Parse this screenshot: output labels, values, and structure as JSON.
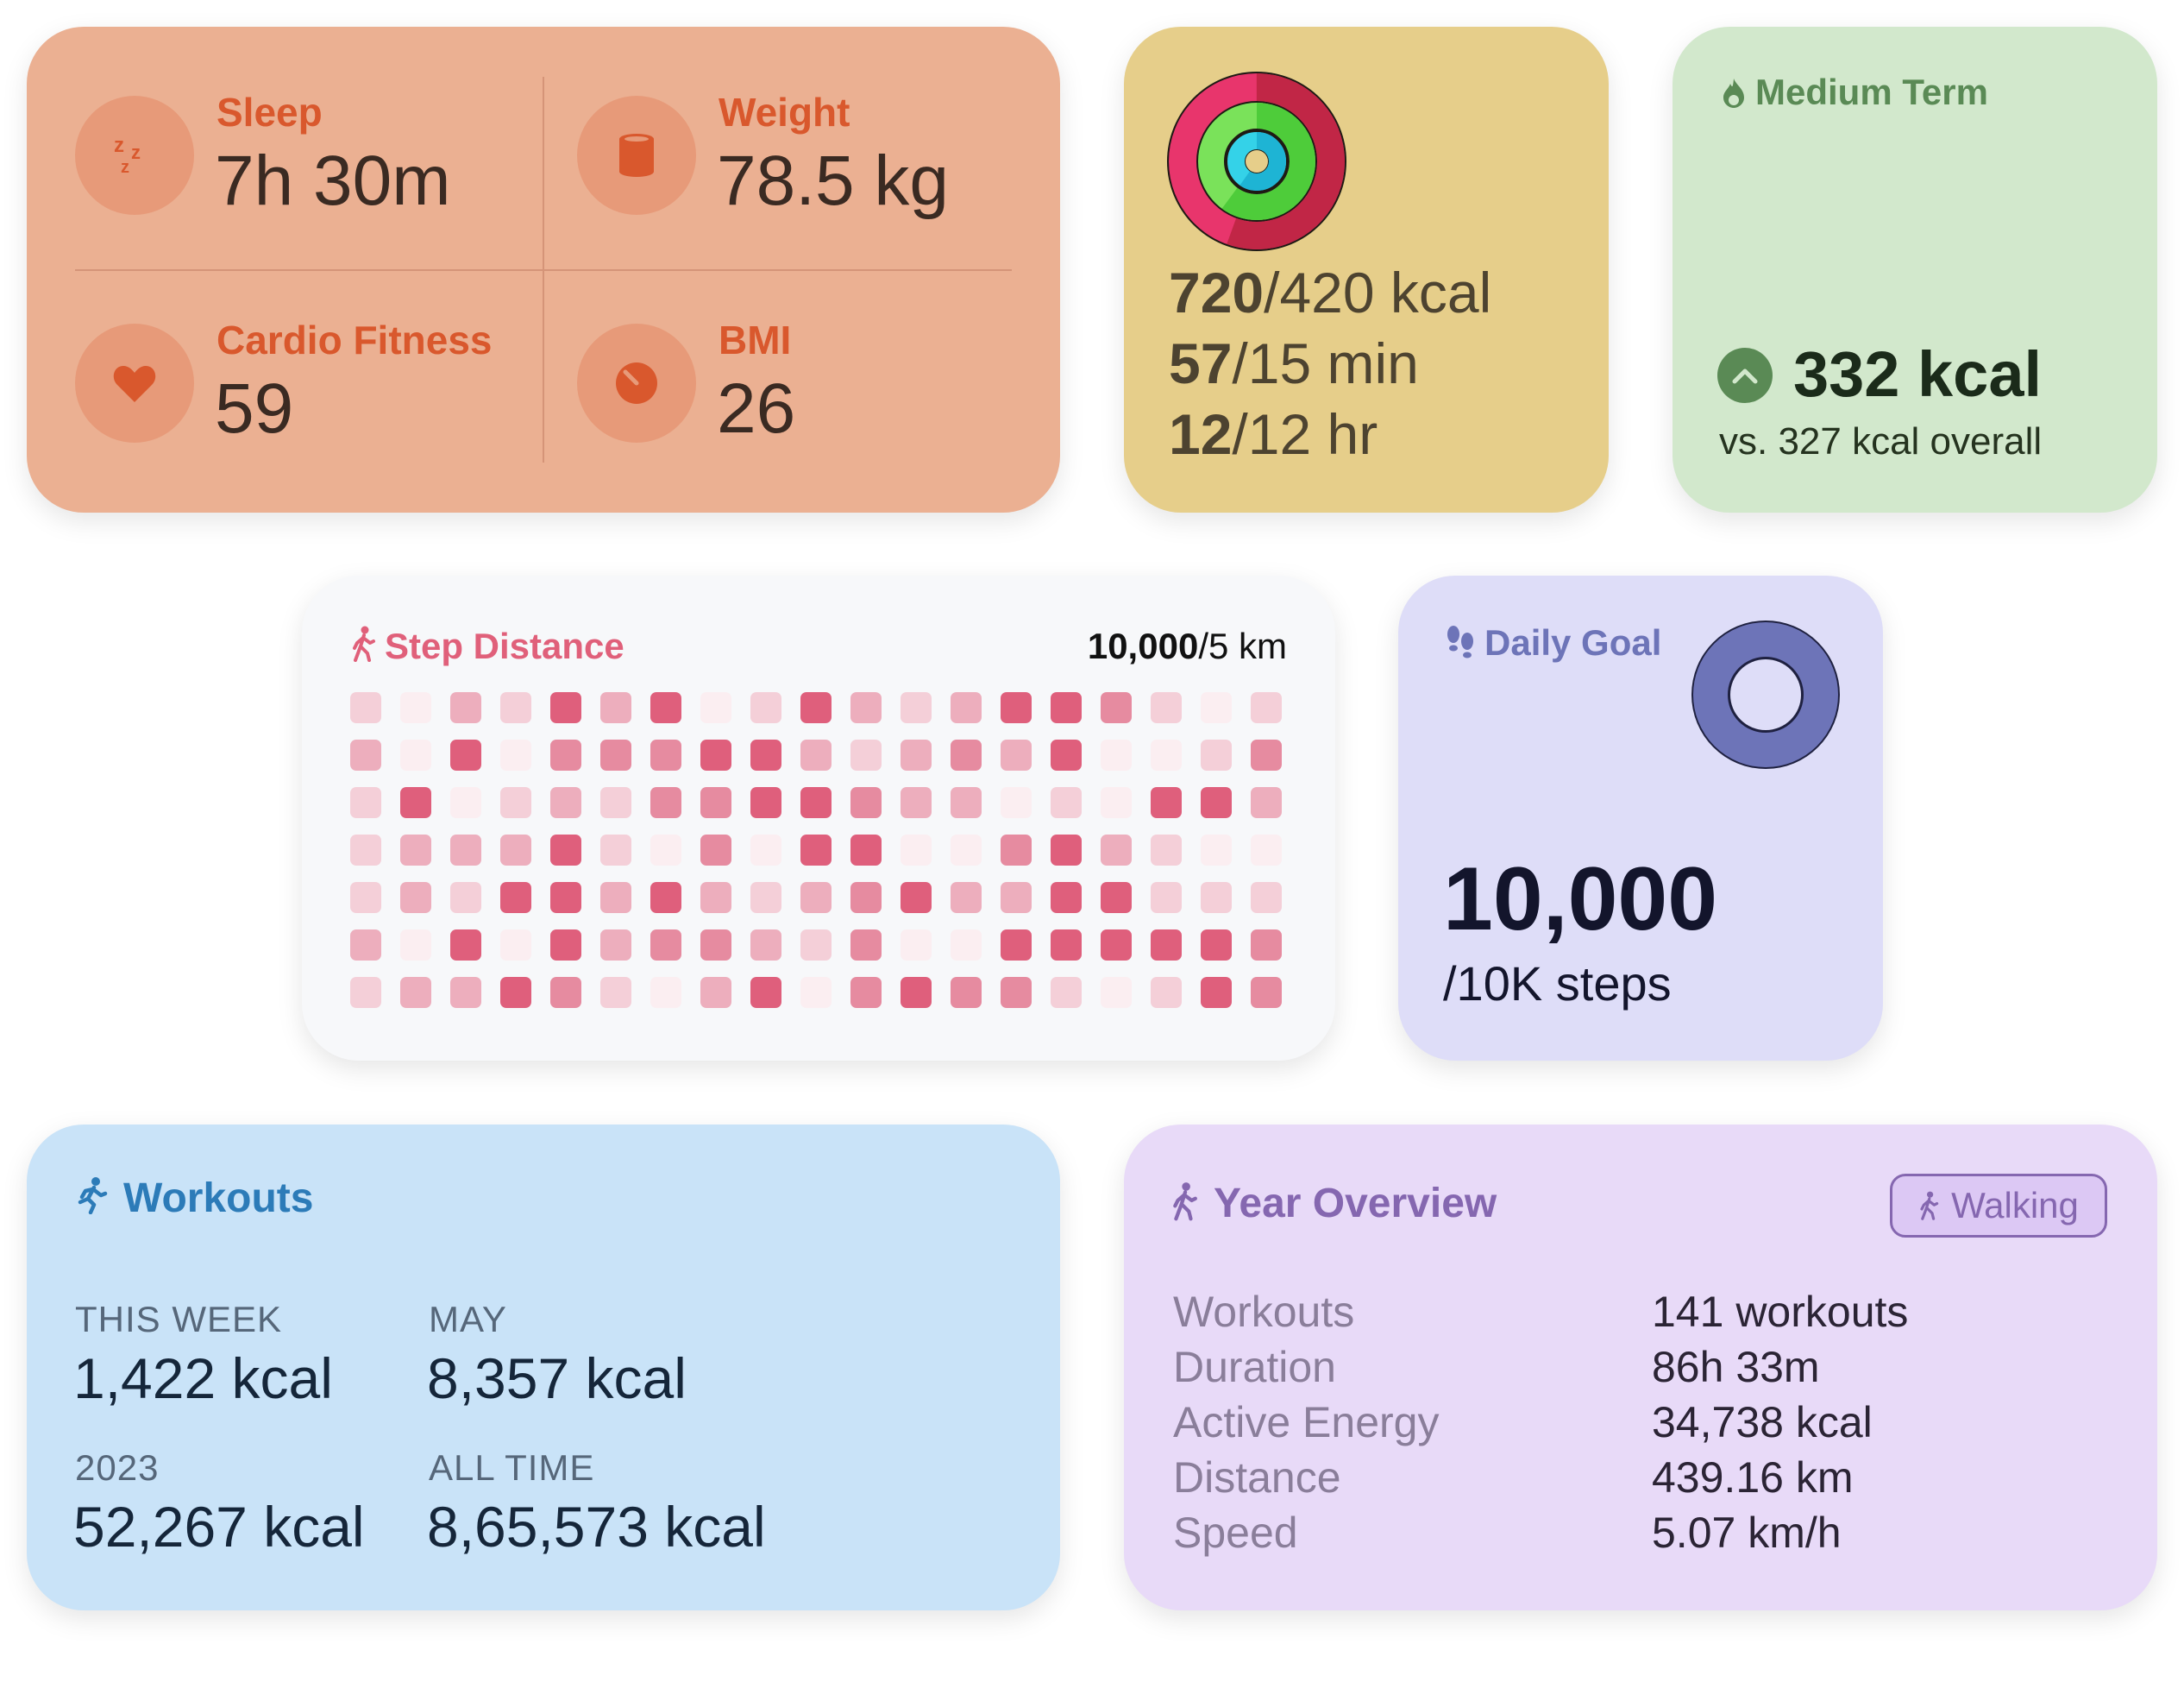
{
  "health": {
    "sleep": {
      "label": "Sleep",
      "value": "7h 30m"
    },
    "weight": {
      "label": "Weight",
      "value": "78.5 kg"
    },
    "cardio": {
      "label": "Cardio Fitness",
      "value": "59"
    },
    "bmi": {
      "label": "BMI",
      "value": "26"
    }
  },
  "activity": {
    "energy": {
      "current": "720",
      "goal": "/420 kcal"
    },
    "exercise": {
      "current": "57",
      "goal": "/15 min"
    },
    "stand": {
      "current": "12",
      "goal": "/12 hr"
    }
  },
  "medium_term": {
    "title": "Medium Term",
    "value": "332 kcal",
    "comparison": "vs. 327 kcal overall"
  },
  "step_distance": {
    "title": "Step Distance",
    "current": "10,000",
    "goal": "/5 km",
    "grid": [
      [
        1,
        0,
        2,
        1,
        4,
        2,
        4,
        0,
        1,
        4,
        2,
        1,
        2,
        4,
        4,
        3,
        1,
        0,
        1
      ],
      [
        2,
        0,
        4,
        0,
        3,
        3,
        3,
        4,
        4,
        2,
        1,
        2,
        3,
        2,
        4,
        0,
        0,
        1,
        3
      ],
      [
        1,
        4,
        0,
        1,
        2,
        1,
        3,
        3,
        4,
        4,
        3,
        2,
        2,
        0,
        1,
        0,
        4,
        4,
        2
      ],
      [
        1,
        2,
        2,
        2,
        4,
        1,
        0,
        3,
        0,
        4,
        4,
        0,
        0,
        3,
        4,
        2,
        1,
        0,
        0
      ],
      [
        1,
        2,
        1,
        4,
        4,
        2,
        4,
        2,
        1,
        2,
        3,
        4,
        2,
        2,
        4,
        4,
        1,
        1,
        1
      ],
      [
        2,
        0,
        4,
        0,
        4,
        2,
        3,
        3,
        2,
        1,
        3,
        0,
        0,
        4,
        4,
        4,
        4,
        4,
        3
      ],
      [
        1,
        2,
        2,
        4,
        3,
        1,
        0,
        2,
        4,
        0,
        3,
        4,
        3,
        3,
        1,
        0,
        1,
        4,
        3
      ]
    ]
  },
  "daily_goal": {
    "title": "Daily Goal",
    "value": "10,000",
    "unit": "/10K steps",
    "progress": 1.0
  },
  "workouts": {
    "title": "Workouts",
    "stats": [
      {
        "label": "THIS WEEK",
        "value": "1,422 kcal"
      },
      {
        "label": "MAY",
        "value": "8,357 kcal"
      },
      {
        "label": "2023",
        "value": "52,267 kcal"
      },
      {
        "label": "ALL TIME",
        "value": "8,65,573 kcal"
      }
    ]
  },
  "year_overview": {
    "title": "Year Overview",
    "filter": "Walking",
    "rows": [
      {
        "label": "Workouts",
        "value": "141 workouts"
      },
      {
        "label": "Duration",
        "value": "86h 33m"
      },
      {
        "label": "Active Energy",
        "value": "34,738 kcal"
      },
      {
        "label": "Distance",
        "value": "439.16 km"
      },
      {
        "label": "Speed",
        "value": "5.07 km/h"
      }
    ]
  },
  "colors": {
    "health_bg": "#EBB092",
    "health_accent": "#D9582D",
    "activity_bg": "#E6CE8A",
    "medium_bg": "#D2E8CC",
    "medium_accent": "#5A8A55",
    "steps_accent": "#E0607A",
    "goal_bg": "#DEDDF8",
    "goal_ring": "#6D74B8",
    "workouts_bg": "#C9E3F8",
    "workouts_accent": "#2C7BB8",
    "year_bg": "#E8DAF8",
    "year_accent": "#8567B0"
  },
  "icons": {
    "sleep": "zzz-icon",
    "weight": "scale-icon",
    "cardio": "heart-icon",
    "bmi": "gauge-icon",
    "medium_term": "flame-icon",
    "trend": "chevron-up-icon",
    "steps": "walking-figure-icon",
    "goal": "footprints-icon",
    "workouts": "running-figure-icon"
  }
}
